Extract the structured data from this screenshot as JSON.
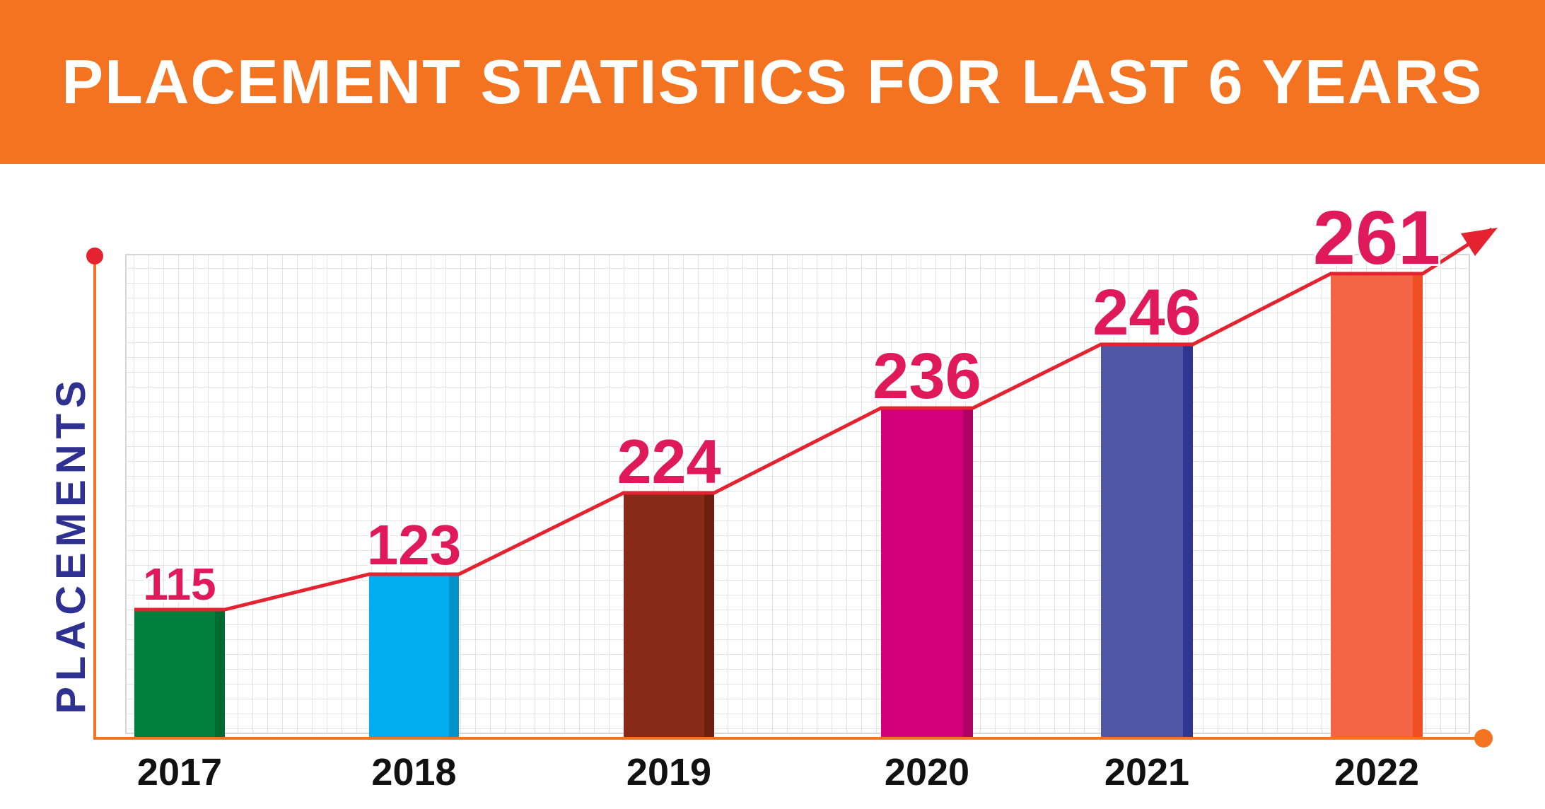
{
  "title": "PLACEMENT STATISTICS FOR LAST 6 YEARS",
  "chart_data": {
    "type": "bar",
    "title": "PLACEMENT STATISTICS FOR LAST 6 YEARS",
    "xlabel": "",
    "ylabel": "PLACEMENTS",
    "categories": [
      "2017",
      "2018",
      "2019",
      "2020",
      "2021",
      "2022"
    ],
    "values": [
      115,
      123,
      224,
      236,
      246,
      261
    ],
    "data_labels": [
      "115",
      "123",
      "224",
      "236",
      "246",
      "261"
    ],
    "trend_line": true,
    "grid": true,
    "bar_colors": [
      "#00803C",
      "#00AEEF",
      "#872A18",
      "#D4007A",
      "#4F56A6",
      "#F26646"
    ],
    "bar_shade_colors": [
      "#006B31",
      "#0091C8",
      "#6F1F10",
      "#B00066",
      "#2F3590",
      "#F04E23"
    ],
    "accent": "#F37321",
    "trend_color": "#E5222F",
    "label_color": "#E0195A"
  }
}
